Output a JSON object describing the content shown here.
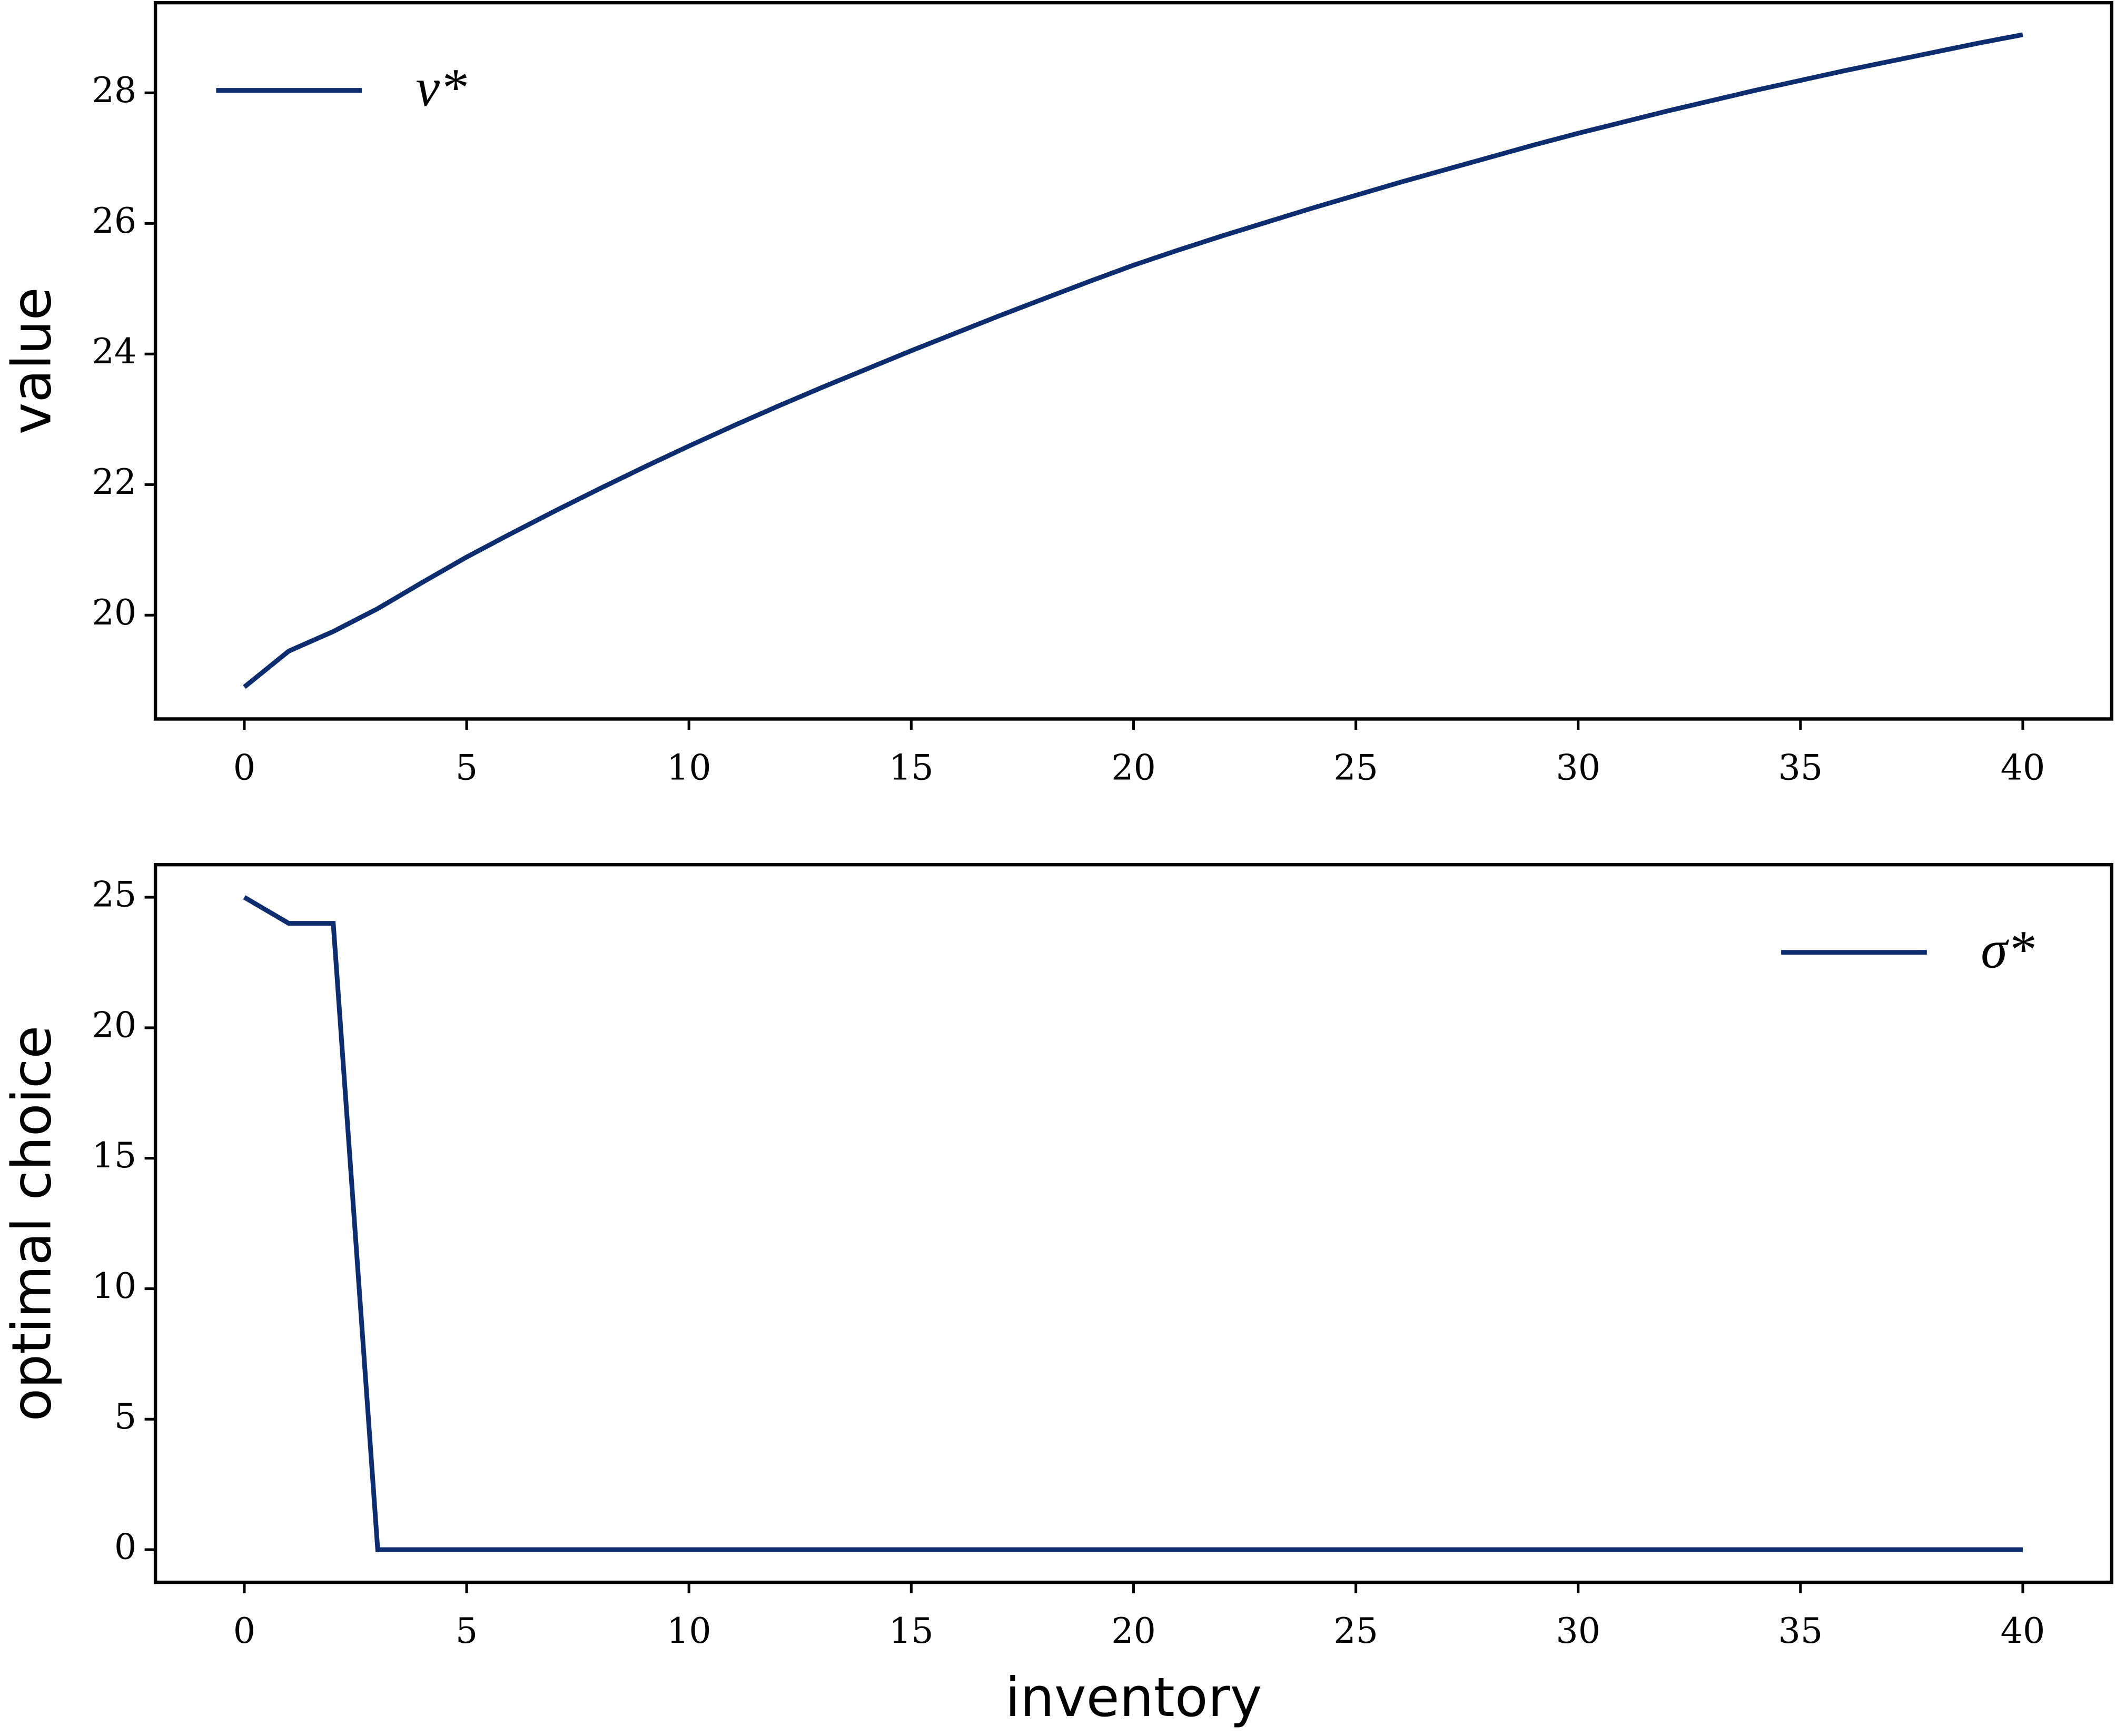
{
  "chart_data": [
    {
      "type": "line",
      "ylabel": "value",
      "x": [
        0,
        1,
        2,
        3,
        4,
        5,
        6,
        7,
        8,
        9,
        10,
        11,
        12,
        13,
        14,
        15,
        16,
        17,
        18,
        19,
        20,
        21,
        22,
        23,
        24,
        25,
        26,
        27,
        28,
        29,
        30,
        31,
        32,
        33,
        34,
        35,
        36,
        37,
        38,
        39,
        40
      ],
      "series": [
        {
          "name": "v*",
          "color": "#0d2d6e",
          "values": [
            18.9,
            19.45,
            19.75,
            20.1,
            20.5,
            20.89,
            21.25,
            21.6,
            21.94,
            22.27,
            22.59,
            22.9,
            23.2,
            23.49,
            23.77,
            24.05,
            24.32,
            24.59,
            24.85,
            25.11,
            25.36,
            25.59,
            25.81,
            26.02,
            26.23,
            26.43,
            26.63,
            26.82,
            27.01,
            27.2,
            27.38,
            27.55,
            27.72,
            27.88,
            28.04,
            28.19,
            28.34,
            28.48,
            28.62,
            28.76,
            28.89
          ]
        }
      ],
      "xlim": [
        -2,
        42
      ],
      "xticks": [
        0,
        5,
        10,
        15,
        20,
        25,
        30,
        35,
        40
      ],
      "ylim": [
        18.41,
        29.38
      ],
      "yticks": [
        20,
        22,
        24,
        26,
        28
      ],
      "legend": "upper left"
    },
    {
      "type": "line",
      "ylabel": "optimal choice",
      "xlabel": "inventory",
      "x": [
        0,
        1,
        2,
        3,
        4,
        5,
        6,
        7,
        8,
        9,
        10,
        11,
        12,
        13,
        14,
        15,
        16,
        17,
        18,
        19,
        20,
        21,
        22,
        23,
        24,
        25,
        26,
        27,
        28,
        29,
        30,
        31,
        32,
        33,
        34,
        35,
        36,
        37,
        38,
        39,
        40
      ],
      "series": [
        {
          "name": "σ*",
          "color": "#0d2d6e",
          "values": [
            25,
            24,
            24,
            0,
            0,
            0,
            0,
            0,
            0,
            0,
            0,
            0,
            0,
            0,
            0,
            0,
            0,
            0,
            0,
            0,
            0,
            0,
            0,
            0,
            0,
            0,
            0,
            0,
            0,
            0,
            0,
            0,
            0,
            0,
            0,
            0,
            0,
            0,
            0,
            0,
            0
          ]
        }
      ],
      "xlim": [
        -2,
        42
      ],
      "xticks": [
        0,
        5,
        10,
        15,
        20,
        25,
        30,
        35,
        40
      ],
      "ylim": [
        -1.25,
        26.25
      ],
      "yticks": [
        0,
        5,
        10,
        15,
        20,
        25
      ],
      "legend": "upper right"
    }
  ]
}
